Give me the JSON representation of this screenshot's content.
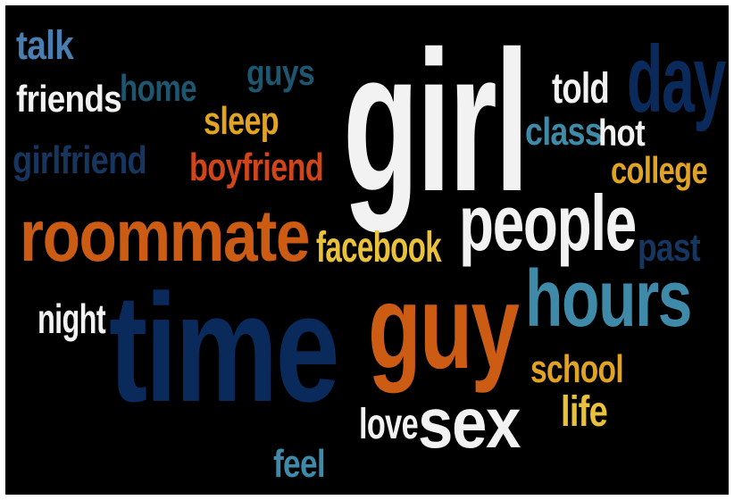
{
  "palette": {
    "white": "#f2f2f2",
    "navy": "#0b2a5c",
    "dark_blue": "#16355f",
    "teal": "#3e8aa8",
    "steel": "#4a7db0",
    "orange": "#cc5c14",
    "amber": "#e0a323",
    "yellow": "#e9c23a",
    "red_orange": "#d2451a",
    "dark_teal": "#1e5670"
  },
  "words": [
    {
      "text": "talk",
      "color": "#4a7db0"
    },
    {
      "text": "friends",
      "color": "#f2f2f2"
    },
    {
      "text": "home",
      "color": "#1e5670"
    },
    {
      "text": "guys",
      "color": "#1e5670"
    },
    {
      "text": "sleep",
      "color": "#e0a323"
    },
    {
      "text": "girl",
      "color": "#f2f2f2"
    },
    {
      "text": "day",
      "color": "#0b2a5c"
    },
    {
      "text": "told",
      "color": "#f2f2f2"
    },
    {
      "text": "class",
      "color": "#3e8aa8"
    },
    {
      "text": "hot",
      "color": "#f2f2f2"
    },
    {
      "text": "girlfriend",
      "color": "#16355f"
    },
    {
      "text": "boyfriend",
      "color": "#d2451a"
    },
    {
      "text": "college",
      "color": "#e0a323"
    },
    {
      "text": "roommate",
      "color": "#cc5c14"
    },
    {
      "text": "people",
      "color": "#f2f2f2"
    },
    {
      "text": "facebook",
      "color": "#e9c23a"
    },
    {
      "text": "past",
      "color": "#16355f"
    },
    {
      "text": "night",
      "color": "#f2f2f2"
    },
    {
      "text": "time",
      "color": "#0b2a5c"
    },
    {
      "text": "guy",
      "color": "#cc5c14"
    },
    {
      "text": "hours",
      "color": "#3e8aa8"
    },
    {
      "text": "school",
      "color": "#e0a323"
    },
    {
      "text": "life",
      "color": "#e9c23a"
    },
    {
      "text": "love",
      "color": "#f2f2f2"
    },
    {
      "text": "sex",
      "color": "#f2f2f2"
    },
    {
      "text": "feel",
      "color": "#3e8aa8"
    }
  ]
}
